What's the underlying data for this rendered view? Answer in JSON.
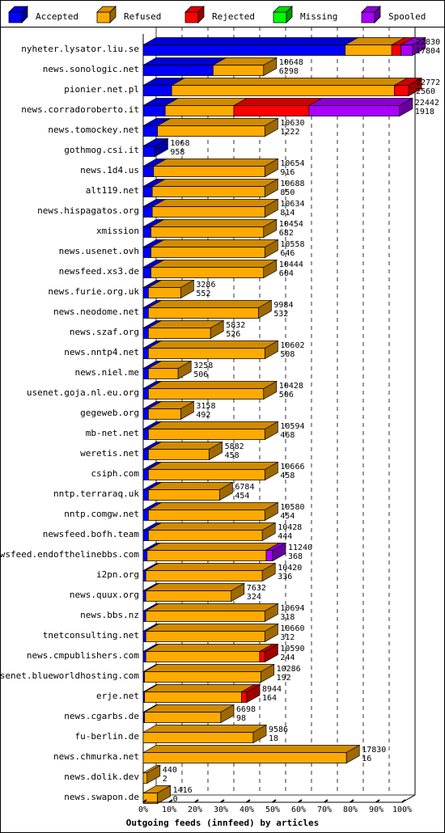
{
  "chart_data": {
    "type": "bar",
    "orientation": "horizontal",
    "stacked": true,
    "xlabel": "Outgoing feeds (innfeed) by articles",
    "xlim": [
      0,
      100
    ],
    "x_unit": "percent",
    "x_ticks": [
      "0%",
      "10%",
      "20%",
      "30%",
      "40%",
      "50%",
      "60%",
      "70%",
      "80%",
      "90%",
      "100%"
    ],
    "grid": true,
    "legend_position": "top",
    "series": [
      {
        "name": "Accepted",
        "color": "#0000ff"
      },
      {
        "name": "Refused",
        "color": "#ffaa00"
      },
      {
        "name": "Rejected",
        "color": "#ff0000"
      },
      {
        "name": "Missing",
        "color": "#00ff00"
      },
      {
        "name": "Spooled",
        "color": "#aa00ff"
      }
    ],
    "rows": [
      {
        "host": "nyheter.lysator.liu.se",
        "label1": "22830",
        "label2": "17804",
        "pct": {
          "accepted": 78.0,
          "refused": 18.0,
          "rejected": 3.5,
          "missing": 0,
          "spooled": 4.5
        }
      },
      {
        "host": "news.sonologic.net",
        "label1": "10648",
        "label2": "6298",
        "pct": {
          "accepted": 27.0,
          "refused": 19.5,
          "rejected": 0,
          "missing": 0,
          "spooled": 0
        }
      },
      {
        "host": "pionier.net.pl",
        "label1": "22772",
        "label2": "2560",
        "pct": {
          "accepted": 11.0,
          "refused": 86.0,
          "rejected": 5.5,
          "missing": 0,
          "spooled": 0
        }
      },
      {
        "host": "news.corradoroberto.it",
        "label1": "22442",
        "label2": "1918",
        "pct": {
          "accepted": 8.5,
          "refused": 26.5,
          "rejected": 29.0,
          "missing": 0,
          "spooled": 35.0
        }
      },
      {
        "host": "news.tomockey.net",
        "label1": "10630",
        "label2": "1222",
        "pct": {
          "accepted": 5.5,
          "refused": 41.5,
          "rejected": 0,
          "missing": 0,
          "spooled": 0
        }
      },
      {
        "host": "gothmog.csi.it",
        "label1": "1068",
        "label2": "958",
        "pct": {
          "accepted": 4.5,
          "refused": 0,
          "rejected": 0,
          "missing": 0,
          "spooled": 0
        }
      },
      {
        "host": "news.1d4.us",
        "label1": "10654",
        "label2": "916",
        "pct": {
          "accepted": 4.0,
          "refused": 43.0,
          "rejected": 0,
          "missing": 0,
          "spooled": 0
        }
      },
      {
        "host": "alt119.net",
        "label1": "10688",
        "label2": "850",
        "pct": {
          "accepted": 3.5,
          "refused": 43.5,
          "rejected": 0,
          "missing": 0,
          "spooled": 0
        }
      },
      {
        "host": "news.hispagatos.org",
        "label1": "10634",
        "label2": "814",
        "pct": {
          "accepted": 3.5,
          "refused": 43.5,
          "rejected": 0,
          "missing": 0,
          "spooled": 0
        }
      },
      {
        "host": "xmission",
        "label1": "10454",
        "label2": "682",
        "pct": {
          "accepted": 3.0,
          "refused": 43.5,
          "rejected": 0,
          "missing": 0,
          "spooled": 0
        }
      },
      {
        "host": "news.usenet.ovh",
        "label1": "10558",
        "label2": "646",
        "pct": {
          "accepted": 3.0,
          "refused": 44.0,
          "rejected": 0,
          "missing": 0,
          "spooled": 0
        }
      },
      {
        "host": "newsfeed.xs3.de",
        "label1": "10444",
        "label2": "604",
        "pct": {
          "accepted": 3.0,
          "refused": 43.5,
          "rejected": 0,
          "missing": 0,
          "spooled": 0
        }
      },
      {
        "host": "news.furie.org.uk",
        "label1": "3286",
        "label2": "552",
        "pct": {
          "accepted": 2.0,
          "refused": 12.5,
          "rejected": 0,
          "missing": 0,
          "spooled": 0
        }
      },
      {
        "host": "news.neodome.net",
        "label1": "9984",
        "label2": "532",
        "pct": {
          "accepted": 2.0,
          "refused": 42.5,
          "rejected": 0,
          "missing": 0,
          "spooled": 0
        }
      },
      {
        "host": "news.szaf.org",
        "label1": "5832",
        "label2": "526",
        "pct": {
          "accepted": 2.0,
          "refused": 24.0,
          "rejected": 0,
          "missing": 0,
          "spooled": 0
        }
      },
      {
        "host": "news.nntp4.net",
        "label1": "10602",
        "label2": "508",
        "pct": {
          "accepted": 2.0,
          "refused": 45.0,
          "rejected": 0,
          "missing": 0,
          "spooled": 0
        }
      },
      {
        "host": "news.niel.me",
        "label1": "3258",
        "label2": "506",
        "pct": {
          "accepted": 2.0,
          "refused": 11.5,
          "rejected": 0,
          "missing": 0,
          "spooled": 0
        }
      },
      {
        "host": "usenet.goja.nl.eu.org",
        "label1": "10428",
        "label2": "506",
        "pct": {
          "accepted": 2.0,
          "refused": 44.5,
          "rejected": 0,
          "missing": 0,
          "spooled": 0
        }
      },
      {
        "host": "gegeweb.org",
        "label1": "3158",
        "label2": "492",
        "pct": {
          "accepted": 2.0,
          "refused": 12.5,
          "rejected": 0,
          "missing": 0,
          "spooled": 0
        }
      },
      {
        "host": "mb-net.net",
        "label1": "10594",
        "label2": "468",
        "pct": {
          "accepted": 2.0,
          "refused": 45.0,
          "rejected": 0,
          "missing": 0,
          "spooled": 0
        }
      },
      {
        "host": "weretis.net",
        "label1": "5882",
        "label2": "458",
        "pct": {
          "accepted": 2.0,
          "refused": 23.5,
          "rejected": 0,
          "missing": 0,
          "spooled": 0
        }
      },
      {
        "host": "csiph.com",
        "label1": "10666",
        "label2": "458",
        "pct": {
          "accepted": 2.0,
          "refused": 45.0,
          "rejected": 0,
          "missing": 0,
          "spooled": 0
        }
      },
      {
        "host": "nntp.terraraq.uk",
        "label1": "6784",
        "label2": "454",
        "pct": {
          "accepted": 2.0,
          "refused": 27.5,
          "rejected": 0,
          "missing": 0,
          "spooled": 0
        }
      },
      {
        "host": "nntp.comgw.net",
        "label1": "10580",
        "label2": "454",
        "pct": {
          "accepted": 2.0,
          "refused": 45.0,
          "rejected": 0,
          "missing": 0,
          "spooled": 0
        }
      },
      {
        "host": "newsfeed.bofh.team",
        "label1": "10428",
        "label2": "444",
        "pct": {
          "accepted": 2.0,
          "refused": 44.0,
          "rejected": 0,
          "missing": 0,
          "spooled": 0
        }
      },
      {
        "host": "newsfeed.endofthelinebbs.com",
        "label1": "11240",
        "label2": "368",
        "pct": {
          "accepted": 1.5,
          "refused": 46.0,
          "rejected": 0,
          "missing": 0,
          "spooled": 2.5
        }
      },
      {
        "host": "i2pn.org",
        "label1": "10420",
        "label2": "336",
        "pct": {
          "accepted": 1.0,
          "refused": 45.0,
          "rejected": 0,
          "missing": 0,
          "spooled": 0
        }
      },
      {
        "host": "news.quux.org",
        "label1": "7632",
        "label2": "324",
        "pct": {
          "accepted": 1.0,
          "refused": 33.0,
          "rejected": 0,
          "missing": 0,
          "spooled": 0
        }
      },
      {
        "host": "news.bbs.nz",
        "label1": "10694",
        "label2": "318",
        "pct": {
          "accepted": 1.0,
          "refused": 46.0,
          "rejected": 0,
          "missing": 0,
          "spooled": 0
        }
      },
      {
        "host": "tnetconsulting.net",
        "label1": "10660",
        "label2": "312",
        "pct": {
          "accepted": 1.0,
          "refused": 46.0,
          "rejected": 0,
          "missing": 0,
          "spooled": 0
        }
      },
      {
        "host": "news.cmpublishers.com",
        "label1": "10590",
        "label2": "244",
        "pct": {
          "accepted": 1.0,
          "refused": 44.0,
          "rejected": 2.0,
          "missing": 0,
          "spooled": 0
        }
      },
      {
        "host": "usenet.blueworldhosting.com",
        "label1": "10286",
        "label2": "192",
        "pct": {
          "accepted": 0.5,
          "refused": 45.0,
          "rejected": 0,
          "missing": 0,
          "spooled": 0
        }
      },
      {
        "host": "erje.net",
        "label1": "8944",
        "label2": "164",
        "pct": {
          "accepted": 0.5,
          "refused": 37.5,
          "rejected": 2.0,
          "missing": 0,
          "spooled": 0
        }
      },
      {
        "host": "news.cgarbs.de",
        "label1": "6698",
        "label2": "98",
        "pct": {
          "accepted": 0.5,
          "refused": 29.5,
          "rejected": 0,
          "missing": 0,
          "spooled": 0
        }
      },
      {
        "host": "fu-berlin.de",
        "label1": "9586",
        "label2": "18",
        "pct": {
          "accepted": 0,
          "refused": 42.5,
          "rejected": 0,
          "missing": 0,
          "spooled": 0
        }
      },
      {
        "host": "news.chmurka.net",
        "label1": "17830",
        "label2": "16",
        "pct": {
          "accepted": 0,
          "refused": 78.5,
          "rejected": 0,
          "missing": 0,
          "spooled": 0
        }
      },
      {
        "host": "news.dolik.dev",
        "label1": "440",
        "label2": "2",
        "pct": {
          "accepted": 0,
          "refused": 1.5,
          "rejected": 0,
          "missing": 0,
          "spooled": 0
        }
      },
      {
        "host": "news.swapon.de",
        "label1": "1416",
        "label2": "0",
        "pct": {
          "accepted": 0,
          "refused": 5.5,
          "rejected": 0,
          "missing": 0,
          "spooled": 0
        }
      }
    ]
  }
}
